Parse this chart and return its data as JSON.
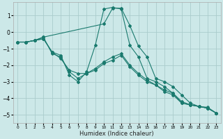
{
  "xlabel": "Humidex (Indice chaleur)",
  "xlim": [
    -0.5,
    23.5
  ],
  "ylim": [
    -5.5,
    1.8
  ],
  "xticks": [
    0,
    1,
    2,
    3,
    4,
    5,
    6,
    7,
    8,
    9,
    10,
    11,
    12,
    13,
    14,
    15,
    16,
    17,
    18,
    19,
    20,
    21,
    22,
    23
  ],
  "yticks": [
    -5,
    -4,
    -3,
    -2,
    -1,
    0,
    1
  ],
  "bg_color": "#cce8e8",
  "grid_color": "#aacccc",
  "line_color": "#1a7a6e",
  "series": [
    {
      "x": [
        0,
        1,
        2,
        3,
        10,
        11,
        12,
        13,
        14,
        15,
        16,
        17,
        18,
        19,
        20,
        21,
        22,
        23
      ],
      "y": [
        -0.6,
        -0.6,
        -0.5,
        -0.3,
        0.5,
        1.45,
        1.45,
        0.4,
        -0.85,
        -1.5,
        -2.8,
        -3.0,
        -3.3,
        -3.8,
        -4.3,
        -4.5,
        -4.55,
        -4.9
      ]
    },
    {
      "x": [
        0,
        1,
        2,
        3,
        4,
        5,
        6,
        7,
        8,
        9,
        10,
        11,
        12,
        13,
        14,
        15,
        16,
        17,
        18,
        19,
        20,
        21,
        22,
        23
      ],
      "y": [
        -0.6,
        -0.6,
        -0.5,
        -0.4,
        -1.2,
        -1.4,
        -2.6,
        -3.0,
        -2.4,
        -0.8,
        1.4,
        1.5,
        1.4,
        -0.8,
        -1.5,
        -2.8,
        -3.0,
        -3.3,
        -3.7,
        -4.3,
        -4.4,
        -4.5,
        -4.6,
        -4.9
      ]
    },
    {
      "x": [
        0,
        1,
        2,
        3,
        4,
        5,
        6,
        7,
        8,
        9,
        10,
        11,
        12,
        13,
        14,
        15,
        16,
        17,
        18,
        19,
        20,
        21,
        22,
        23
      ],
      "y": [
        -0.6,
        -0.6,
        -0.5,
        -0.4,
        -1.2,
        -1.6,
        -2.3,
        -2.5,
        -2.5,
        -2.2,
        -1.8,
        -1.5,
        -1.3,
        -2.0,
        -2.5,
        -2.9,
        -3.2,
        -3.5,
        -3.7,
        -4.2,
        -4.4,
        -4.5,
        -4.6,
        -4.9
      ]
    },
    {
      "x": [
        0,
        1,
        2,
        3,
        4,
        5,
        6,
        7,
        8,
        9,
        10,
        11,
        12,
        13,
        14,
        15,
        16,
        17,
        18,
        19,
        20,
        21,
        22,
        23
      ],
      "y": [
        -0.6,
        -0.6,
        -0.5,
        -0.3,
        -1.3,
        -1.5,
        -2.4,
        -2.8,
        -2.5,
        -2.3,
        -1.9,
        -1.7,
        -1.4,
        -2.1,
        -2.6,
        -3.0,
        -3.2,
        -3.6,
        -3.8,
        -4.3,
        -4.4,
        -4.5,
        -4.6,
        -4.9
      ]
    }
  ]
}
